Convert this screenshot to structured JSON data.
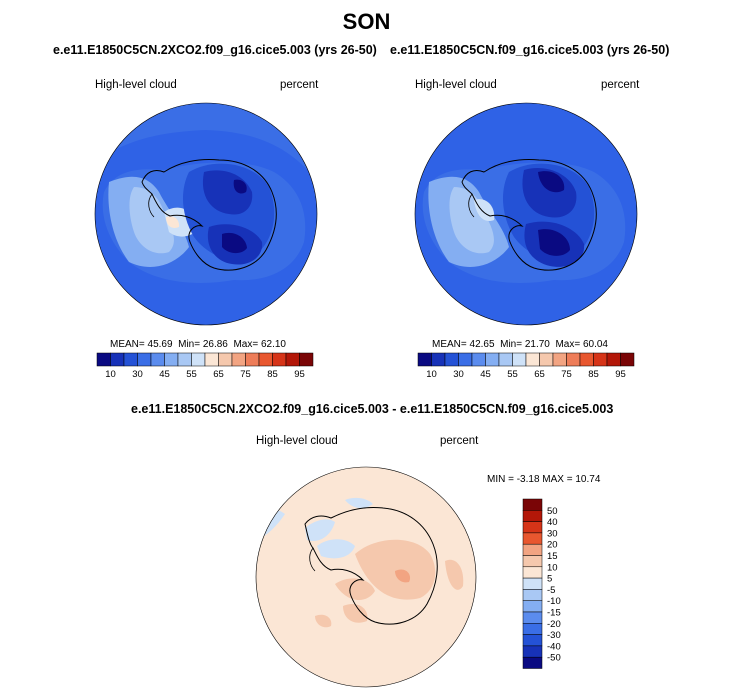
{
  "season_title": "SON",
  "panels": [
    {
      "case": "e.e11.E1850C5CN.2XCO2.f09_g16.cice5.003 (yrs 26-50)",
      "variable": "High-level cloud",
      "units": "percent",
      "stats": {
        "mean_label": "MEAN=",
        "mean": "45.69",
        "min_label": "Min=",
        "min": "26.86",
        "max_label": "Max=",
        "max": "62.10"
      },
      "colorbar": {
        "colors": [
          "#0a0a82",
          "#1732b8",
          "#2452d6",
          "#3a6ee6",
          "#5b8cee",
          "#84aef2",
          "#a9c8f4",
          "#cfe2f8",
          "#fbe6d5",
          "#f5c8ad",
          "#f2a482",
          "#ee7d59",
          "#e8572f",
          "#d63418",
          "#b31708",
          "#7a0506"
        ],
        "tick_labels": [
          "10",
          "30",
          "45",
          "55",
          "65",
          "75",
          "85",
          "95"
        ]
      }
    },
    {
      "case": "e.e11.E1850C5CN.f09_g16.cice5.003 (yrs 26-50)",
      "variable": "High-level cloud",
      "units": "percent",
      "stats": {
        "mean_label": "MEAN=",
        "mean": "42.65",
        "min_label": "Min=",
        "min": "21.70",
        "max_label": "Max=",
        "max": "60.04"
      },
      "colorbar": {
        "colors": [
          "#0a0a82",
          "#1732b8",
          "#2452d6",
          "#3a6ee6",
          "#5b8cee",
          "#84aef2",
          "#a9c8f4",
          "#cfe2f8",
          "#fbe6d5",
          "#f5c8ad",
          "#f2a482",
          "#ee7d59",
          "#e8572f",
          "#d63418",
          "#b31708",
          "#7a0506"
        ],
        "tick_labels": [
          "10",
          "30",
          "45",
          "55",
          "65",
          "75",
          "85",
          "95"
        ]
      }
    }
  ],
  "diff": {
    "case": "e.e11.E1850C5CN.2XCO2.f09_g16.cice5.003 - e.e11.E1850C5CN.f09_g16.cice5.003",
    "variable": "High-level cloud",
    "units": "percent",
    "stats_text": "MIN =  -3.18 MAX =  10.74",
    "colorbar": {
      "colors": [
        "#7a0506",
        "#b31708",
        "#d63418",
        "#e8572f",
        "#f2a482",
        "#f5c8ad",
        "#fbe6d5",
        "#cfe2f8",
        "#a9c8f4",
        "#84aef2",
        "#5b8cee",
        "#3a6ee6",
        "#2452d6",
        "#1732b8",
        "#0a0a82"
      ],
      "tick_labels": [
        "50",
        "40",
        "30",
        "20",
        "15",
        "10",
        "5",
        "-5",
        "-10",
        "-15",
        "-20",
        "-30",
        "-40",
        "-50"
      ]
    }
  },
  "colors": {
    "ocean_blue": "#2f62e6",
    "land_blue": "#2452d6",
    "coast": "#000000",
    "diff_fill": "#fbe6d5"
  }
}
